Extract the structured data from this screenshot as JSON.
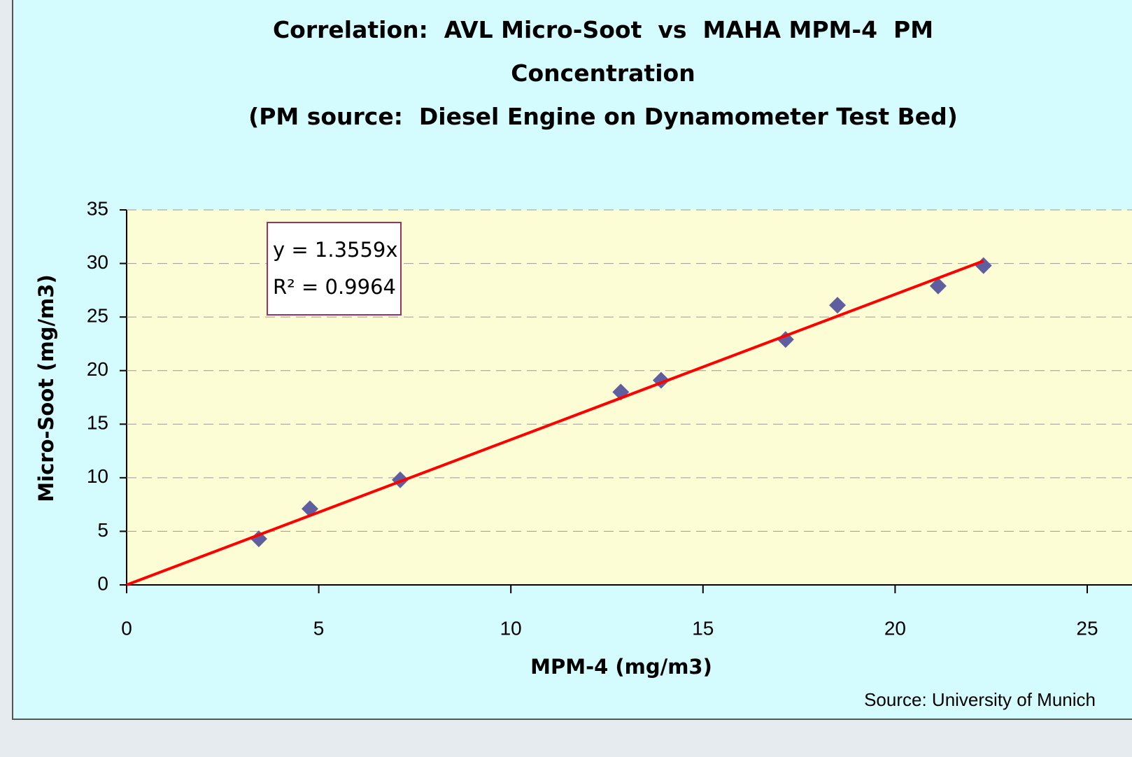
{
  "chart_data": {
    "type": "scatter",
    "title": "Correlation:  AVL Micro-Soot  vs  MAHA MPM-4  PM Concentration",
    "subtitle": "(PM source:  Diesel Engine on Dynamometer Test Bed)",
    "x_label": "MPM-4 (mg/m3)",
    "y_label": "Micro-Soot (mg/m3)",
    "source": "Source: University of Munich",
    "series": [
      {
        "name": "Micro-Soot",
        "color": "#5f5f9f",
        "x": [
          3.44,
          4.77,
          7.12,
          12.86,
          13.91,
          17.15,
          18.5,
          21.12,
          22.3
        ],
        "values": [
          4.3,
          7.1,
          9.8,
          18.0,
          19.1,
          22.9,
          26.1,
          27.9,
          29.8
        ]
      }
    ],
    "trendline": {
      "label": "y = 1.3559x",
      "r2_label": "R² = 0.9964",
      "slope": 1.3559,
      "xlim": [
        0,
        22.3
      ],
      "color": "#ff0000"
    },
    "xlim": [
      0,
      25
    ],
    "xticks": [
      0,
      5,
      10,
      15,
      20,
      25
    ],
    "ylim": [
      0,
      35
    ],
    "yticks": [
      0,
      5,
      10,
      15,
      20,
      25,
      30,
      35
    ],
    "grid": true
  }
}
